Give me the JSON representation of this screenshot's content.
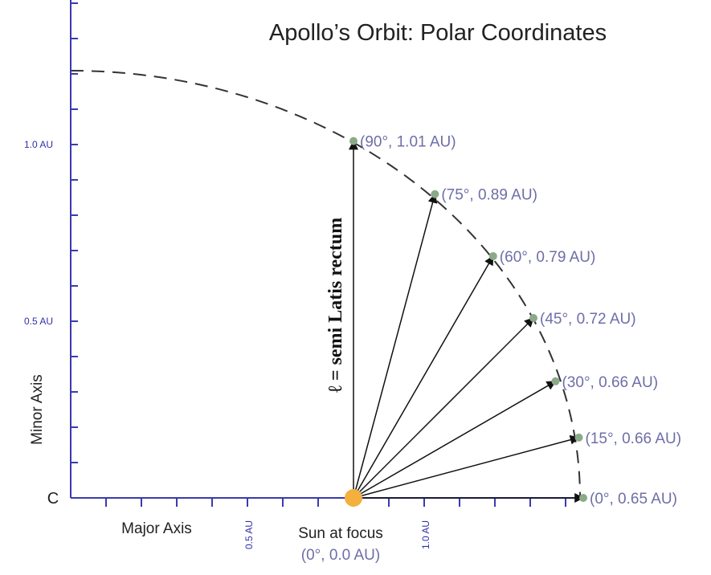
{
  "title": "Apollo’s Orbit: Polar Coordinates",
  "center_label": "C",
  "minor_axis_label": "Minor Axis",
  "major_axis_label": "Major Axis",
  "sun": {
    "label": "Sun at focus",
    "coordinates": "(0°, 0.0 AU)"
  },
  "latus_rectum_label": "ℓ = semi Latis rectum",
  "y_axis_labels": [
    "1.0 AU",
    "0.5 AU"
  ],
  "x_axis_labels": [
    "0.5 AU",
    "1.0 AU"
  ],
  "points": [
    {
      "angle": 90,
      "r": 1.01,
      "label": "(90°, 1.01 AU)"
    },
    {
      "angle": 75,
      "r": 0.89,
      "label": "(75°, 0.89 AU)"
    },
    {
      "angle": 60,
      "r": 0.79,
      "label": "(60°, 0.79 AU)"
    },
    {
      "angle": 45,
      "r": 0.72,
      "label": "(45°, 0.72 AU)"
    },
    {
      "angle": 30,
      "r": 0.66,
      "label": "(30°, 0.66 AU)"
    },
    {
      "angle": 15,
      "r": 0.66,
      "label": "(15°, 0.66 AU)"
    },
    {
      "angle": 0,
      "r": 0.65,
      "label": "(0°, 0.65 AU)"
    }
  ]
}
